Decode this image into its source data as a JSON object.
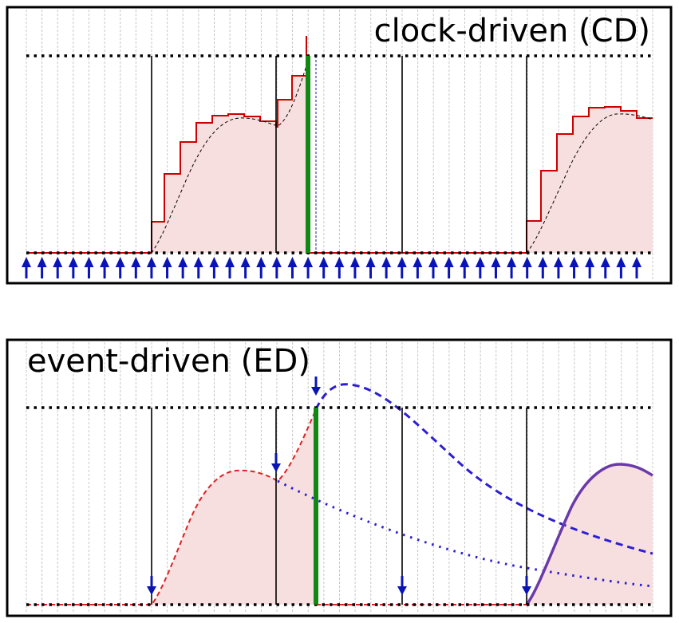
{
  "panels": {
    "top": {
      "title": "clock-driven (CD)",
      "colors": {
        "fill": "#f8dfdf",
        "step_line": "#cc0000",
        "spike": "#118811",
        "clock_arrows": "#0a14b4"
      },
      "icons": [
        "clock-tick-arrow-icon"
      ]
    },
    "bottom": {
      "title": "event-driven (ED)",
      "colors": {
        "fill": "#f8dfdf",
        "trace": "#dd2222",
        "prediction": "#2d1ed2",
        "spike": "#118811",
        "event_arrows": "#0a14b4"
      },
      "icons": [
        "event-arrow-icon"
      ]
    }
  }
}
